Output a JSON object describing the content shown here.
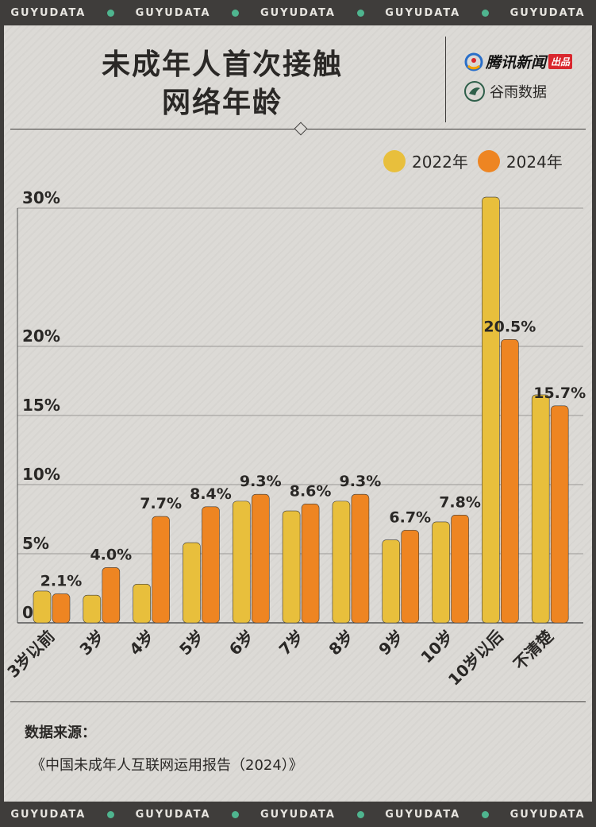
{
  "watermark": {
    "top": [
      "GUYUDATA",
      "GUYUDATA",
      "GUYUDATA",
      "GUYUDATA",
      "GUYUDATA"
    ],
    "bottom": [
      "GUYUDATA",
      "GUYUDATA",
      "GUYUDATA",
      "GUYUDATA",
      "GUYUDATA"
    ],
    "dot_color": "#4fb58f"
  },
  "header": {
    "title_line1": "未成年人首次接触",
    "title_line2": "网络年龄",
    "brand1": "腾讯新闻",
    "brand1_badge": "出品",
    "brand2": "谷雨数据"
  },
  "legend": [
    {
      "label": "2022年",
      "color": "#e8bf3c"
    },
    {
      "label": "2024年",
      "color": "#ee8522"
    }
  ],
  "chart_data": {
    "type": "bar",
    "title": "未成年人首次接触网络年龄",
    "categories": [
      "3岁以前",
      "3岁",
      "4岁",
      "5岁",
      "6岁",
      "7岁",
      "8岁",
      "9岁",
      "10岁",
      "10岁以后",
      "不清楚"
    ],
    "series": [
      {
        "name": "2022年",
        "values": [
          2.3,
          2.0,
          2.8,
          5.8,
          8.8,
          8.1,
          8.8,
          6.0,
          7.3,
          30.8,
          16.5
        ]
      },
      {
        "name": "2024年",
        "values": [
          2.1,
          4.0,
          7.7,
          8.4,
          9.3,
          8.6,
          9.3,
          6.7,
          7.8,
          20.5,
          15.7
        ]
      }
    ],
    "data_labels": [
      "2.1%",
      "4.0%",
      "7.7%",
      "8.4%",
      "9.3%",
      "8.6%",
      "9.3%",
      "6.7%",
      "7.8%",
      "20.5%",
      "15.7%"
    ],
    "yticks": [
      0,
      5,
      10,
      15,
      20,
      30
    ],
    "ytick_labels": [
      "0",
      "5%",
      "10%",
      "15%",
      "20%",
      "30%"
    ],
    "ylim": [
      0,
      30
    ],
    "xlabel": "",
    "ylabel": ""
  },
  "source": {
    "label": "数据来源：",
    "value": "《中国未成年人互联网运用报告（2024）》"
  }
}
